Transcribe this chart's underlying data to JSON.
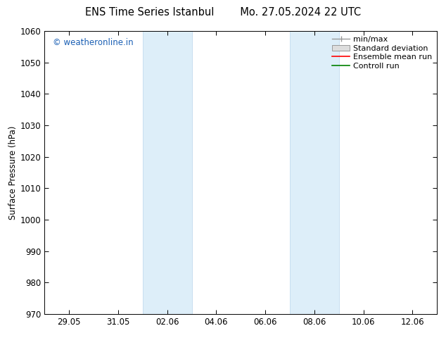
{
  "title": "ENS Time Series Istanbul        Mo. 27.05.2024 22 UTC",
  "ylabel": "Surface Pressure (hPa)",
  "ylim": [
    970,
    1060
  ],
  "yticks": [
    970,
    980,
    990,
    1000,
    1010,
    1020,
    1030,
    1040,
    1050,
    1060
  ],
  "xlim": [
    0,
    16
  ],
  "xtick_positions": [
    1,
    3,
    5,
    7,
    9,
    11,
    13,
    15
  ],
  "xtick_labels": [
    "29.05",
    "31.05",
    "02.06",
    "04.06",
    "06.06",
    "08.06",
    "10.06",
    "12.06"
  ],
  "shaded_bands": [
    {
      "x_start": 4.0,
      "x_end": 6.0
    },
    {
      "x_start": 10.0,
      "x_end": 12.0
    }
  ],
  "shaded_color": "#ddeef9",
  "shaded_edge_color": "#b8d4ec",
  "background_color": "#ffffff",
  "watermark_text": "© weatheronline.in",
  "watermark_color": "#1a5fb4",
  "font_size_title": 10.5,
  "font_size_axis_label": 8.5,
  "font_size_tick": 8.5,
  "font_size_legend": 8,
  "font_size_watermark": 8.5,
  "legend_minmax_color": "#999999",
  "legend_std_facecolor": "#dddddd",
  "legend_std_edgecolor": "#999999",
  "legend_ens_color": "#ff0000",
  "legend_ctrl_color": "#008000"
}
